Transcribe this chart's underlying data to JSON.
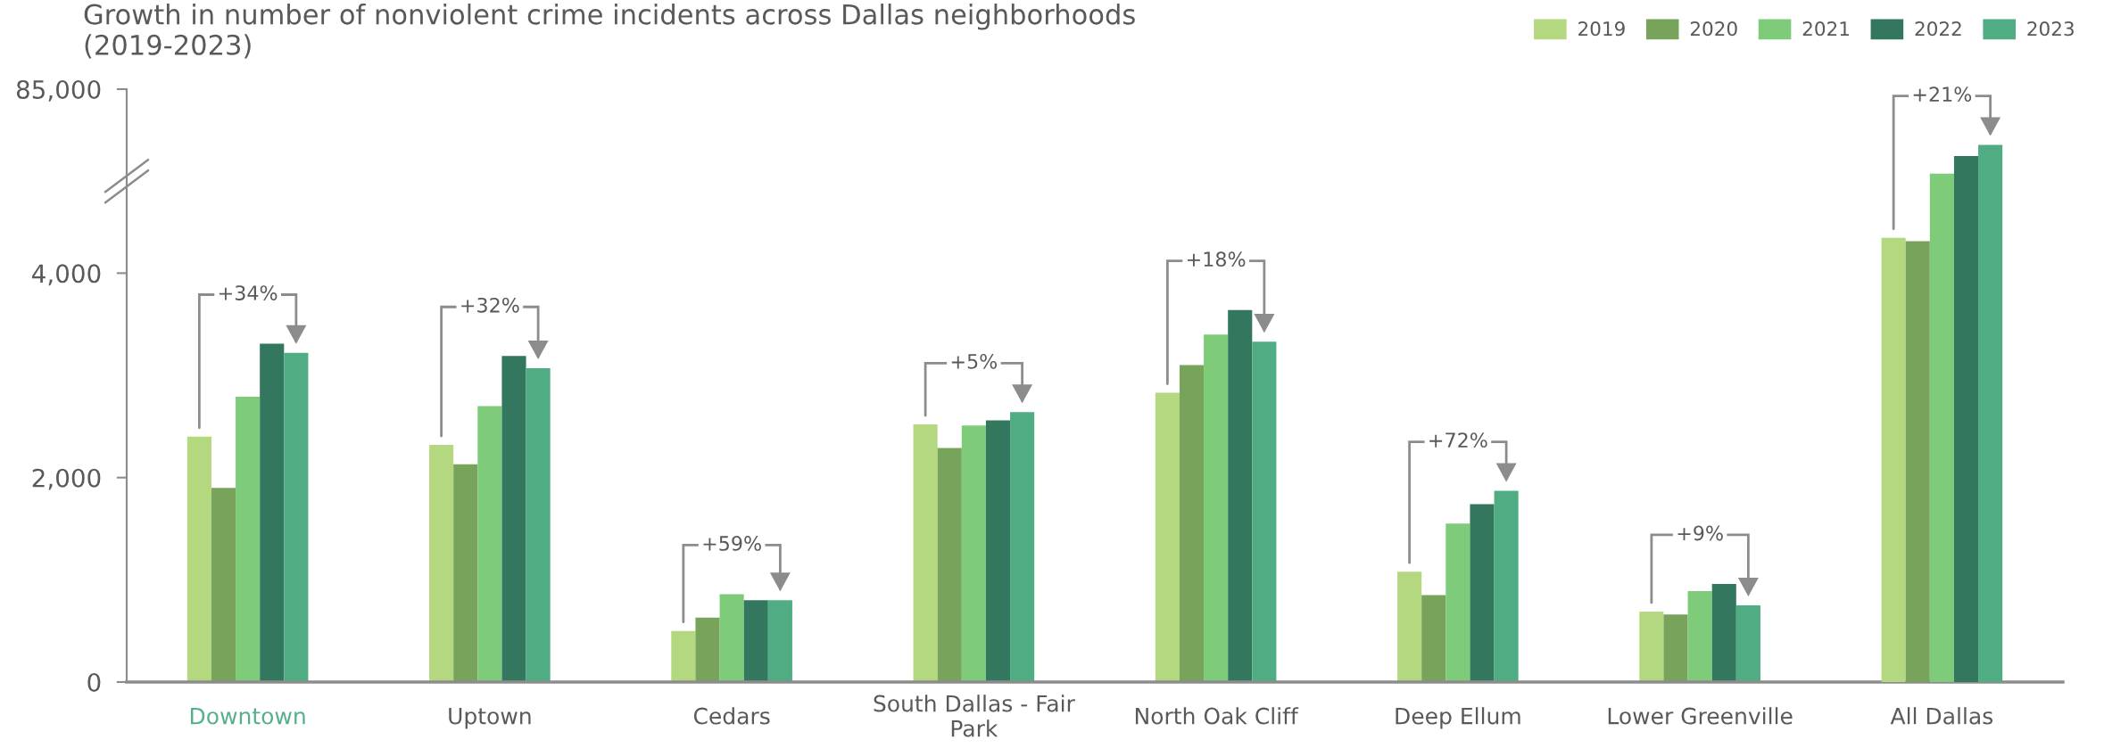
{
  "chart_data": {
    "type": "bar",
    "title": "Growth in number of nonviolent crime incidents across Dallas neighborhoods\n(2019-2023)",
    "categories": [
      "Downtown",
      "Uptown",
      "Cedars",
      "South Dallas - Fair\nPark",
      "North Oak Cliff",
      "Deep Ellum",
      "Lower Greenville",
      "All Dallas"
    ],
    "series": [
      {
        "name": "2019",
        "color": "#b4d87f",
        "values": [
          2400,
          2320,
          500,
          2520,
          2830,
          1080,
          690,
          null
        ]
      },
      {
        "name": "2020",
        "color": "#77a35a",
        "values": [
          1900,
          2130,
          630,
          2290,
          3100,
          850,
          660,
          null
        ]
      },
      {
        "name": "2021",
        "color": "#7ecb79",
        "values": [
          2790,
          2700,
          860,
          2510,
          3400,
          1550,
          890,
          null
        ]
      },
      {
        "name": "2022",
        "color": "#33775f",
        "values": [
          3310,
          3190,
          800,
          2560,
          3640,
          1740,
          960,
          null
        ]
      },
      {
        "name": "2023",
        "color": "#50ad83",
        "values": [
          3220,
          3070,
          800,
          2640,
          3330,
          1870,
          750,
          null
        ]
      },
      {
        "color": "#b4d87f",
        "axis": "y2",
        "values": [
          null,
          null,
          null,
          null,
          null,
          null,
          null,
          63700
        ]
      },
      {
        "color": "#77a35a",
        "axis": "y2",
        "values": [
          null,
          null,
          null,
          null,
          null,
          null,
          null,
          63200
        ]
      },
      {
        "color": "#7ecb79",
        "axis": "y2",
        "values": [
          null,
          null,
          null,
          null,
          null,
          null,
          null,
          72900
        ]
      },
      {
        "color": "#33775f",
        "axis": "y2",
        "values": [
          null,
          null,
          null,
          null,
          null,
          null,
          null,
          75400
        ]
      },
      {
        "color": "#50ad83",
        "axis": "y2",
        "values": [
          null,
          null,
          null,
          null,
          null,
          null,
          null,
          77000
        ]
      }
    ],
    "ylim": [
      0,
      5800
    ],
    "yticks": [
      {
        "value": 0,
        "label": null
      },
      {
        "value": 2000,
        "label": "2,000"
      },
      {
        "value": 4000,
        "label": "4,000"
      }
    ],
    "y2lim": [
      0,
      85000
    ],
    "y2ticks": [
      0,
      {
        "value": 85000,
        "label": "85,000"
      }
    ],
    "legend": "top right",
    "annotations": [
      "+34%",
      "+32%",
      "+59%",
      "+5%",
      "+18%",
      "+72%",
      "+9%",
      "+21%"
    ]
  }
}
